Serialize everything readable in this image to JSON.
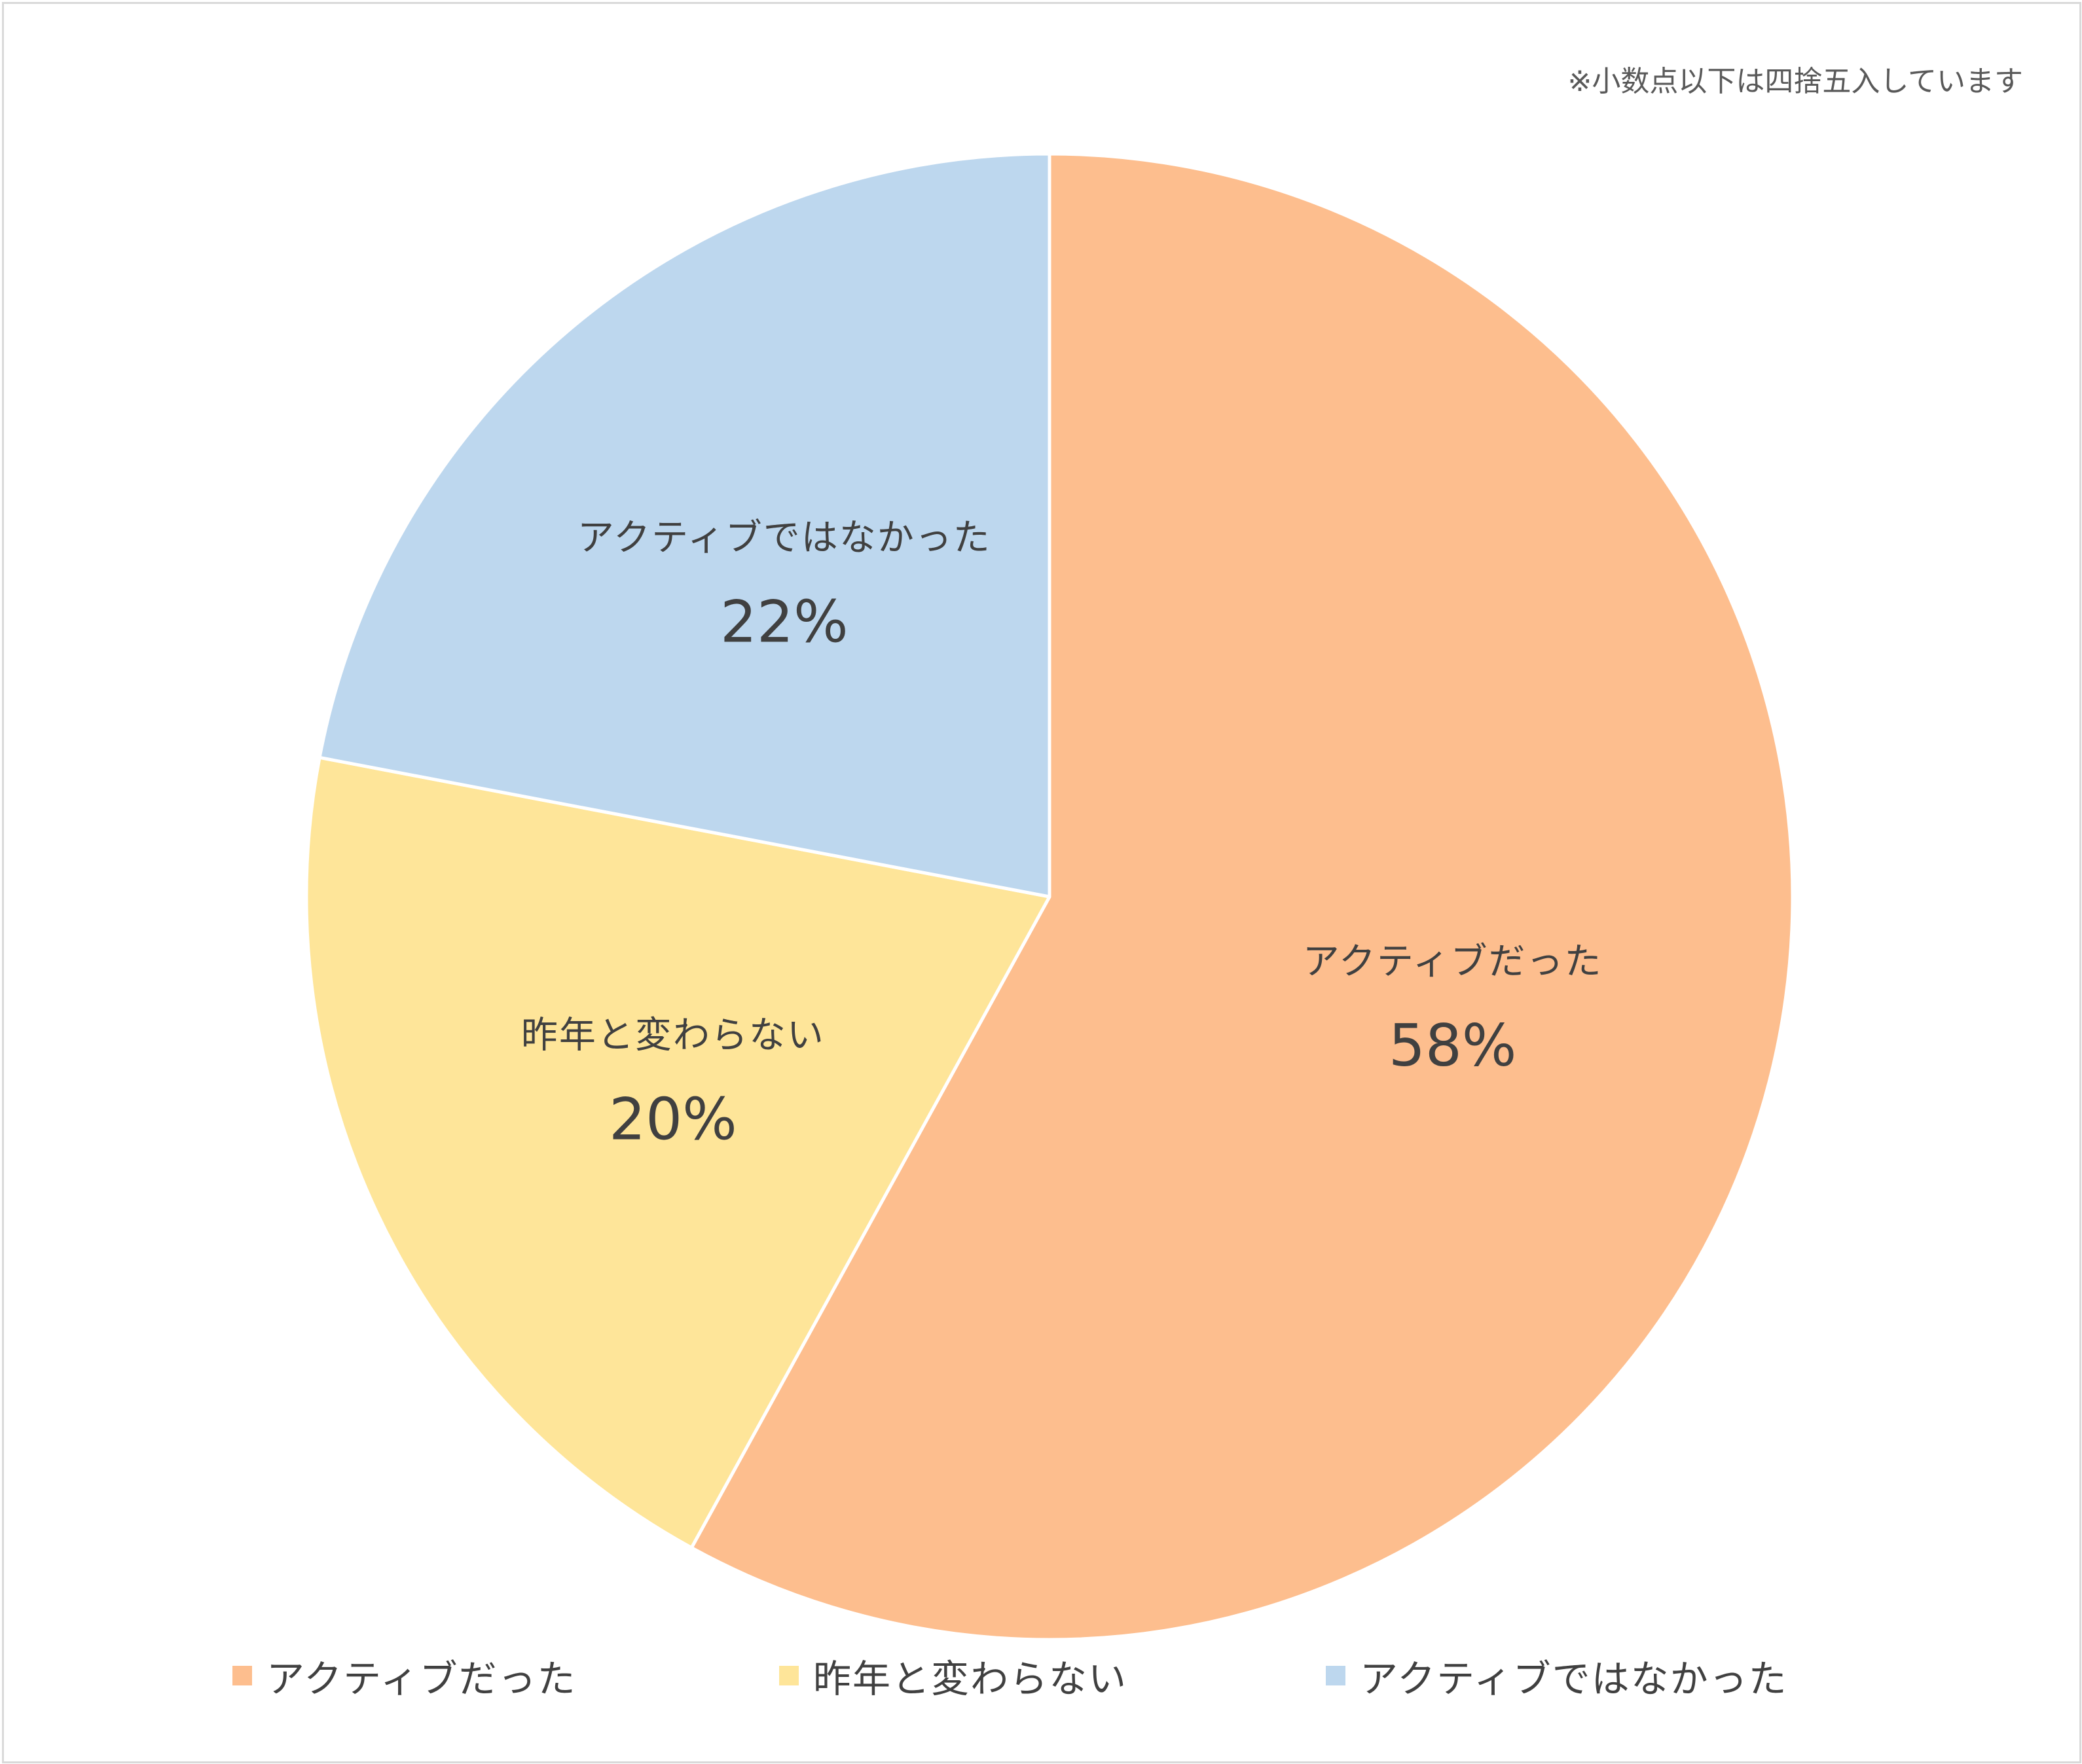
{
  "note": "※小数点以下は四捨五入しています",
  "chart_data": {
    "type": "pie",
    "start_angle_deg": 0,
    "direction": "clockwise",
    "unit": "%",
    "slices": [
      {
        "name": "アクティブだった",
        "value": 58,
        "label": "58%",
        "color": "#FDBE8E"
      },
      {
        "name": "昨年と変わらない",
        "value": 20,
        "label": "20%",
        "color": "#FEE599"
      },
      {
        "name": "アクティブではなかった",
        "value": 22,
        "label": "22%",
        "color": "#BDD7EE"
      }
    ],
    "legend": {
      "position": "bottom",
      "items": [
        "アクティブだった",
        "昨年と変わらない",
        "アクティブではなかった"
      ]
    }
  }
}
